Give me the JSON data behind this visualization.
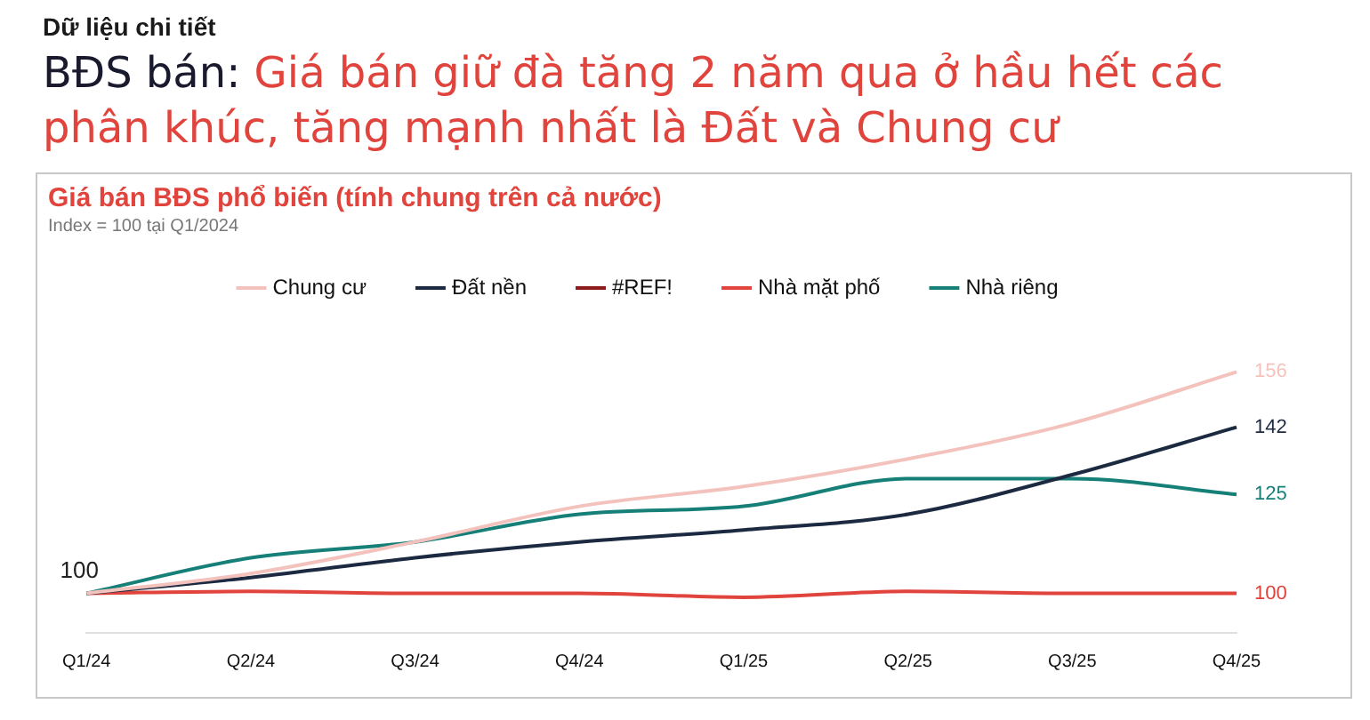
{
  "chart_data": {
    "type": "line",
    "title": "BĐS bán: Giá bán giữ đà tăng 2 năm qua ở hầu hết các phân khúc, tăng mạnh nhất là Đất và Chung cư",
    "subtitle": "Giá bán BĐS phổ biến (tính chung trên cả nước)",
    "annotations": [
      "Dữ liệu chi tiết",
      "Index = 100 tại Q1/2024",
      {
        "text": "100",
        "x": "Q1/24",
        "y": 100
      }
    ],
    "categories": [
      "Q1/24",
      "Q2/24",
      "Q3/24",
      "Q4/24",
      "Q1/25",
      "Q2/25",
      "Q3/25",
      "Q4/25"
    ],
    "series": [
      {
        "name": "Chung cư",
        "color": "#f4c2bd",
        "values": [
          100,
          105,
          113,
          122,
          127,
          134,
          143,
          156
        ],
        "value_labels": [
          null,
          null,
          null,
          null,
          null,
          null,
          null,
          "156"
        ]
      },
      {
        "name": "Đất nền",
        "color": "#1b2a41",
        "values": [
          100,
          104,
          109,
          113,
          116,
          120,
          130,
          142
        ],
        "value_labels": [
          null,
          null,
          null,
          null,
          null,
          null,
          null,
          "142"
        ]
      },
      {
        "name": "#REF!",
        "color": "#8b1a1a",
        "values": [
          null,
          null,
          null,
          null,
          null,
          null,
          null,
          null
        ]
      },
      {
        "name": "Nhà mặt phố",
        "color": "#e0443c",
        "values": [
          100,
          100.5,
          100,
          100,
          99,
          100.5,
          100,
          100
        ],
        "value_labels": [
          null,
          null,
          null,
          null,
          null,
          null,
          null,
          "100"
        ]
      },
      {
        "name": "Nhà riêng",
        "color": "#167f78",
        "values": [
          100,
          109,
          113,
          120,
          122,
          129,
          129,
          125
        ],
        "value_labels": [
          null,
          null,
          null,
          null,
          null,
          null,
          null,
          "125"
        ]
      }
    ],
    "grid": false,
    "legend": "top",
    "marker": "none",
    "line_style": "solid"
  }
}
